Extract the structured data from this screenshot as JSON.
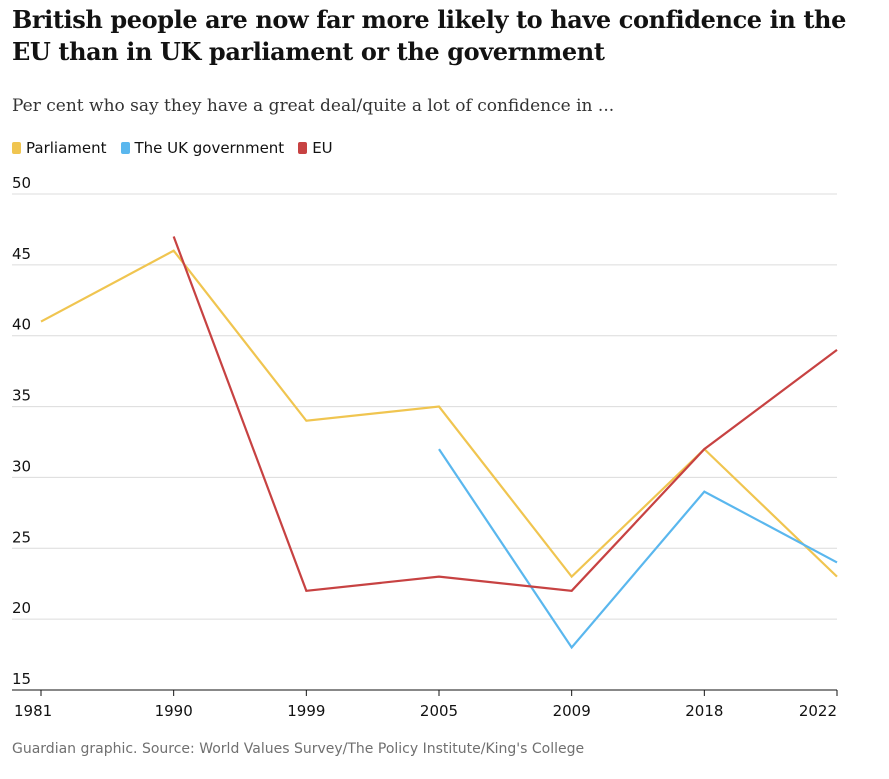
{
  "chart_data": {
    "type": "line",
    "title": "British people are now far more likely to have confidence in the EU than in UK parliament or the government",
    "subtitle": "Per cent who say they have a great deal/quite a lot of confidence in ...",
    "source": "Guardian graphic. Source: World Values Survey/The Policy Institute/King's College",
    "x": [
      "1981",
      "1990",
      "1999",
      "2005",
      "2009",
      "2018",
      "2022"
    ],
    "ylim": [
      15,
      50
    ],
    "yticks": [
      15,
      20,
      25,
      30,
      35,
      40,
      45,
      50
    ],
    "grid": true,
    "series": [
      {
        "name": "Parliament",
        "color": "#f0c550",
        "values": [
          41,
          46,
          34,
          35,
          23,
          32,
          23
        ]
      },
      {
        "name": "The UK government",
        "color": "#5ab7ee",
        "values": [
          null,
          null,
          null,
          32,
          18,
          29,
          24
        ]
      },
      {
        "name": "EU",
        "color": "#c74242",
        "values": [
          null,
          47,
          22,
          23,
          22,
          32,
          39
        ]
      }
    ]
  }
}
